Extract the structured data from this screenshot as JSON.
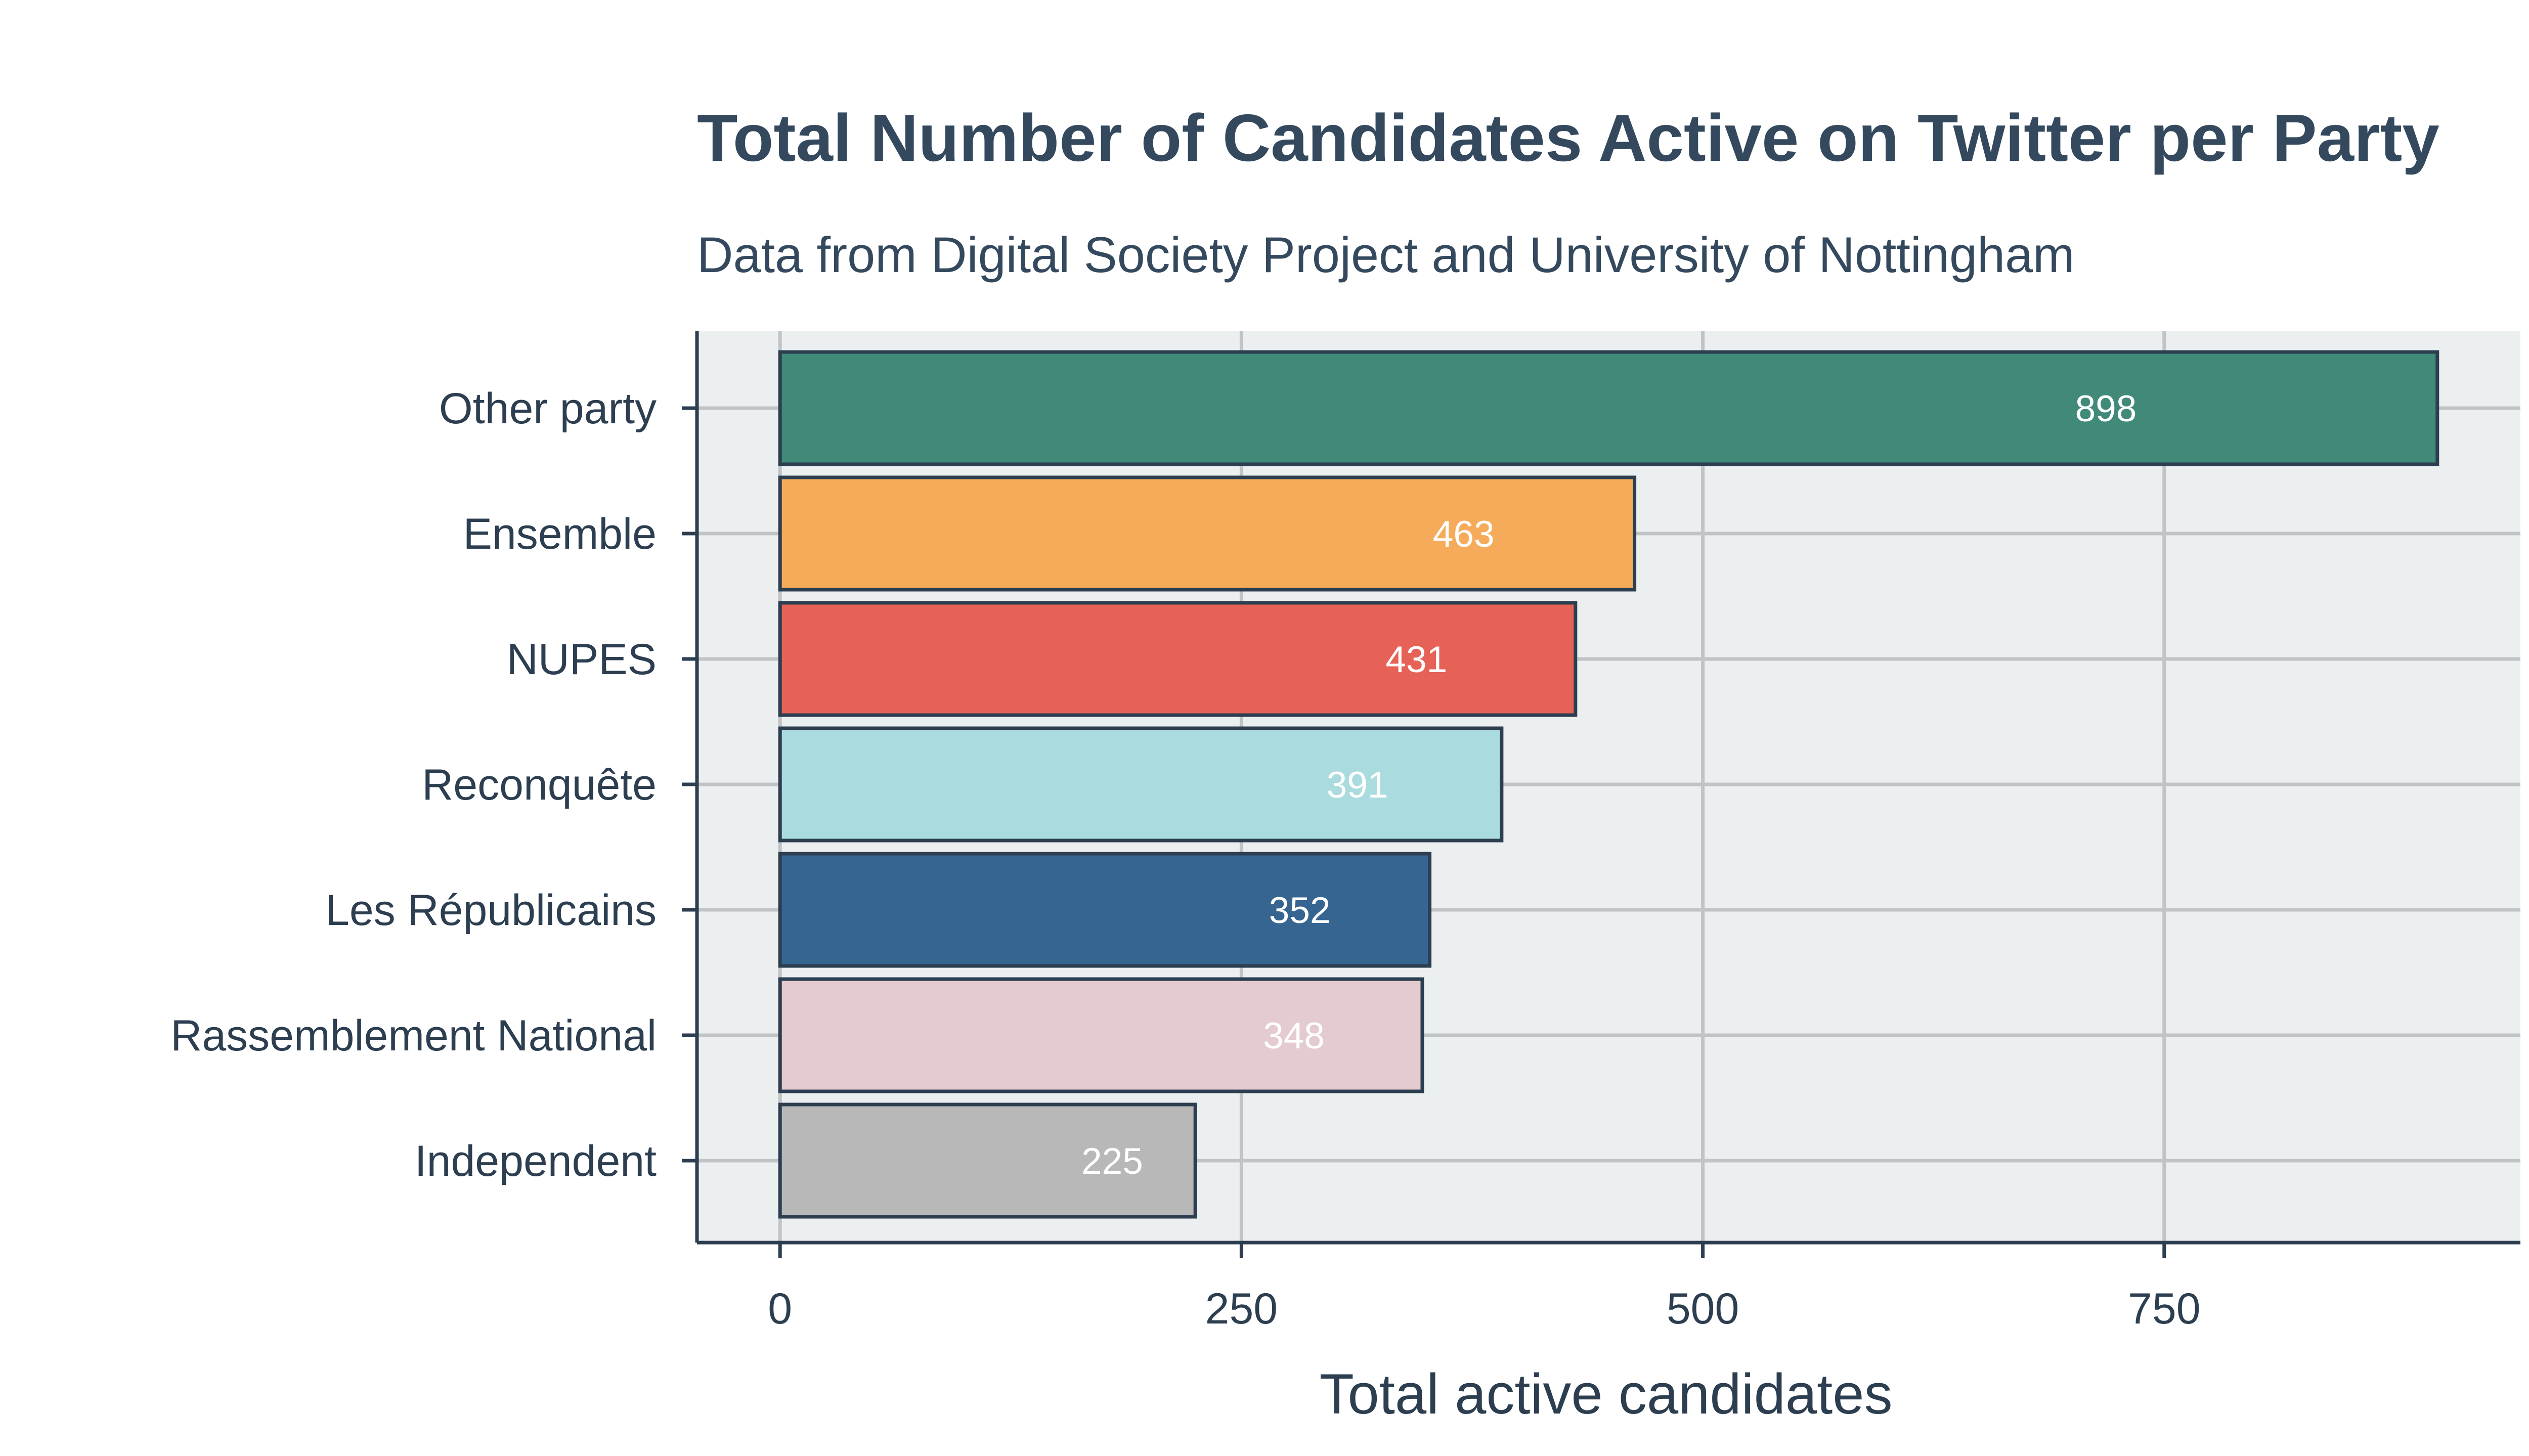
{
  "chart_data": {
    "type": "bar",
    "orientation": "horizontal",
    "title": "Total Number of Candidates Active on Twitter per Party",
    "subtitle": "Data from Digital Society Project and University of Nottingham",
    "xlabel": "Total active candidates",
    "ylabel": "",
    "xlim": [
      -45,
      943
    ],
    "xticks": [
      0,
      250,
      500,
      750
    ],
    "xtick_labels": [
      "0",
      "250",
      "500",
      "750"
    ],
    "grid": true,
    "categories": [
      "Other party",
      "Ensemble",
      "NUPES",
      "Reconquête",
      "Les Républicains",
      "Rassemblement National",
      "Independent"
    ],
    "values": [
      898,
      463,
      431,
      391,
      352,
      348,
      225
    ],
    "value_labels": [
      "898",
      "463",
      "431",
      "391",
      "352",
      "348",
      "225"
    ],
    "colors": [
      "#418a7a",
      "#f6ab5a",
      "#e76256",
      "#aadcdf",
      "#376592",
      "#e3cbd0",
      "#b8b8b8"
    ],
    "edge_color": "#2c3e50",
    "plot_background": "#ebeff0",
    "grid_color": "#c0c4c6",
    "value_label_color": "#ffffff"
  }
}
